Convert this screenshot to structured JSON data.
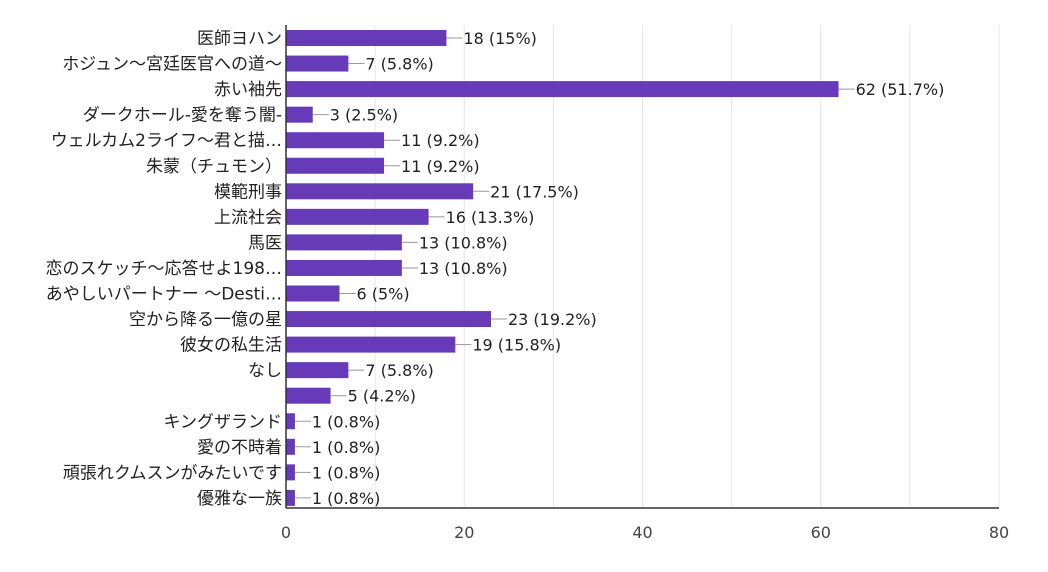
{
  "chart_data": {
    "type": "bar",
    "orientation": "horizontal",
    "categories": [
      "医師ヨハン",
      "ホジュン～宮廷医官への道～",
      "赤い袖先",
      "ダークホール-愛を奪う闇-",
      "ウェルカム2ライフ～君と描…",
      "朱蒙（チュモン）",
      "模範刑事",
      "上流社会",
      "馬医",
      "恋のスケッチ～応答せよ198…",
      "あやしいパートナー ～Desti…",
      "空から降る一億の星",
      "彼女の私生活",
      "なし",
      "",
      "キングザランド",
      "愛の不時着",
      "頑張れクムスンがみたいです",
      "優雅な一族"
    ],
    "values": [
      18,
      7,
      62,
      3,
      11,
      11,
      21,
      16,
      13,
      13,
      6,
      23,
      19,
      7,
      5,
      1,
      1,
      1,
      1
    ],
    "data_labels": [
      "18 (15%)",
      "7 (5.8%)",
      "62 (51.7%)",
      "3 (2.5%)",
      "11 (9.2%)",
      "11 (9.2%)",
      "21 (17.5%)",
      "16 (13.3%)",
      "13 (10.8%)",
      "13 (10.8%)",
      "6 (5%)",
      "23 (19.2%)",
      "19 (15.8%)",
      "7 (5.8%)",
      "5 (4.2%)",
      "1 (0.8%)",
      "1 (0.8%)",
      "1 (0.8%)",
      "1 (0.8%)"
    ],
    "xlim": [
      0,
      80
    ],
    "xticks": [
      0,
      20,
      40,
      60,
      80
    ],
    "xtick_labels": [
      "0",
      "20",
      "40",
      "60",
      "80"
    ],
    "title": "",
    "xlabel": "",
    "ylabel": "",
    "grid": true,
    "colors": {
      "bar": "#673ab7",
      "grid": "#e6e6e6",
      "axis": "#333333",
      "leader": "#999999",
      "text": "#222222"
    }
  }
}
